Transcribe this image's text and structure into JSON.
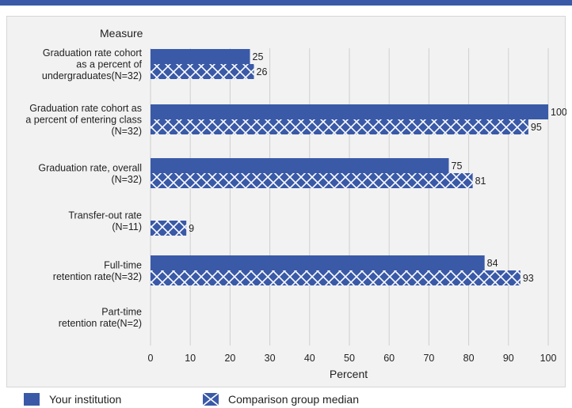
{
  "colors": {
    "accent": "#3a5aa8",
    "bar_fill": "#3a5aa8",
    "panel_bg": "#f2f2f2"
  },
  "chart_data": {
    "type": "bar",
    "orientation": "horizontal",
    "title": "",
    "category_axis_label": "Measure",
    "xlabel": "Percent",
    "xlim": [
      0,
      100
    ],
    "xticks": [
      0,
      10,
      20,
      30,
      40,
      50,
      60,
      70,
      80,
      90,
      100
    ],
    "grid": true,
    "legend_position": "bottom",
    "categories": [
      [
        "Graduation rate cohort",
        "as a percent of",
        "undergraduates(N=32)"
      ],
      [
        "Graduation rate cohort as",
        "a percent of entering class",
        "(N=32)"
      ],
      [
        "Graduation rate, overall",
        "(N=32)"
      ],
      [
        "Transfer-out rate",
        "(N=11)"
      ],
      [
        "Full-time",
        "retention rate(N=32)"
      ],
      [
        "Part-time",
        "retention rate(N=2)"
      ]
    ],
    "series": [
      {
        "name": "Your institution",
        "pattern": "solid",
        "values": [
          25,
          100,
          75,
          null,
          84,
          null
        ]
      },
      {
        "name": "Comparison group median",
        "pattern": "crosshatch",
        "values": [
          26,
          95,
          81,
          9,
          93,
          null
        ]
      }
    ]
  }
}
